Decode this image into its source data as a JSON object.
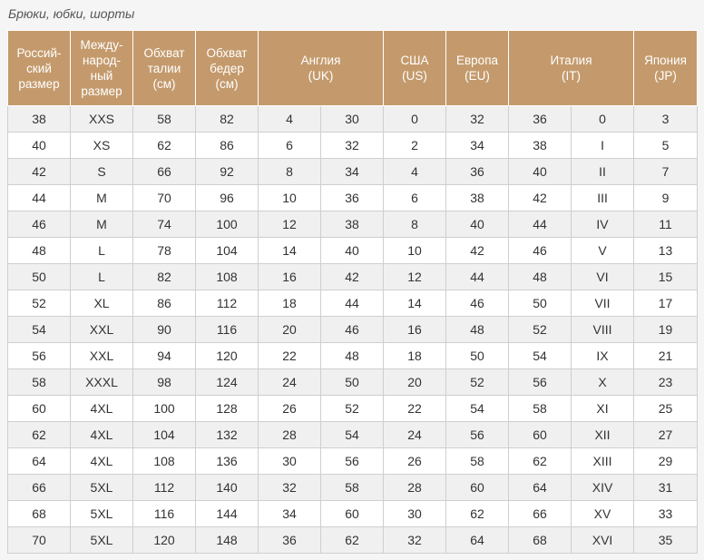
{
  "caption": "Брюки, юбки, шорты",
  "header": {
    "ru": "Россий-\nский\nразмер",
    "intl": "Между-\nнарод-\nный\nразмер",
    "waist": "Обхват\nталии\n(см)",
    "hips": "Обхват\nбедер\n(см)",
    "uk": "Англия\n(UK)",
    "us": "США\n(US)",
    "eu": "Европа\n(EU)",
    "it": "Италия\n(IT)",
    "jp": "Япония\n(JP)"
  },
  "rows": [
    [
      "38",
      "XXS",
      "58",
      "82",
      "4",
      "30",
      "0",
      "32",
      "36",
      "0",
      "3"
    ],
    [
      "40",
      "XS",
      "62",
      "86",
      "6",
      "32",
      "2",
      "34",
      "38",
      "I",
      "5"
    ],
    [
      "42",
      "S",
      "66",
      "92",
      "8",
      "34",
      "4",
      "36",
      "40",
      "II",
      "7"
    ],
    [
      "44",
      "M",
      "70",
      "96",
      "10",
      "36",
      "6",
      "38",
      "42",
      "III",
      "9"
    ],
    [
      "46",
      "M",
      "74",
      "100",
      "12",
      "38",
      "8",
      "40",
      "44",
      "IV",
      "11"
    ],
    [
      "48",
      "L",
      "78",
      "104",
      "14",
      "40",
      "10",
      "42",
      "46",
      "V",
      "13"
    ],
    [
      "50",
      "L",
      "82",
      "108",
      "16",
      "42",
      "12",
      "44",
      "48",
      "VI",
      "15"
    ],
    [
      "52",
      "XL",
      "86",
      "112",
      "18",
      "44",
      "14",
      "46",
      "50",
      "VII",
      "17"
    ],
    [
      "54",
      "XXL",
      "90",
      "116",
      "20",
      "46",
      "16",
      "48",
      "52",
      "VIII",
      "19"
    ],
    [
      "56",
      "XXL",
      "94",
      "120",
      "22",
      "48",
      "18",
      "50",
      "54",
      "IX",
      "21"
    ],
    [
      "58",
      "XXXL",
      "98",
      "124",
      "24",
      "50",
      "20",
      "52",
      "56",
      "X",
      "23"
    ],
    [
      "60",
      "4XL",
      "100",
      "128",
      "26",
      "52",
      "22",
      "54",
      "58",
      "XI",
      "25"
    ],
    [
      "62",
      "4XL",
      "104",
      "132",
      "28",
      "54",
      "24",
      "56",
      "60",
      "XII",
      "27"
    ],
    [
      "64",
      "4XL",
      "108",
      "136",
      "30",
      "56",
      "26",
      "58",
      "62",
      "XIII",
      "29"
    ],
    [
      "66",
      "5XL",
      "112",
      "140",
      "32",
      "58",
      "28",
      "60",
      "64",
      "XIV",
      "31"
    ],
    [
      "68",
      "5XL",
      "116",
      "144",
      "34",
      "60",
      "30",
      "62",
      "66",
      "XV",
      "33"
    ],
    [
      "70",
      "5XL",
      "120",
      "148",
      "36",
      "62",
      "32",
      "64",
      "68",
      "XVI",
      "35"
    ]
  ],
  "colors": {
    "header_bg": "#c49a6c",
    "header_text": "#ffffff",
    "row_odd": "#f0f0f0",
    "row_even": "#ffffff",
    "grid": "#cfcfcf"
  }
}
